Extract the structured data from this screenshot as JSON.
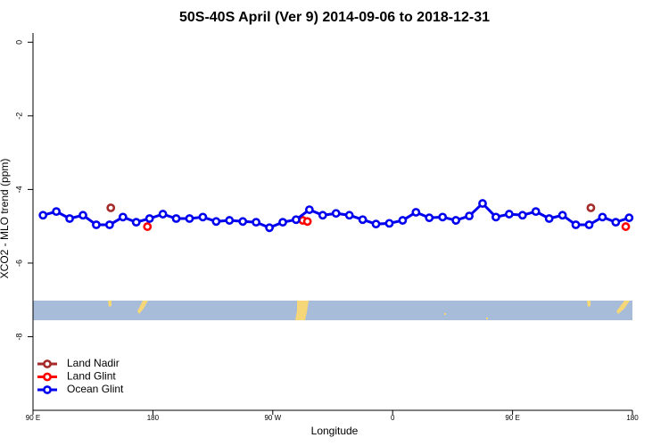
{
  "chart_data": {
    "type": "line",
    "title": "50S-40S April (Ver 9)   2014-09-06 to 2018-12-31",
    "x_label": "Longitude",
    "y_label": "XCO2 - MLO trend (ppm)",
    "xlim": [
      90,
      540
    ],
    "ylim": [
      -10,
      0.25
    ],
    "xticks": [
      {
        "value": 90,
        "label": "90 E"
      },
      {
        "value": 180,
        "label": "180"
      },
      {
        "value": 270,
        "label": "90 W"
      },
      {
        "value": 360,
        "label": "0"
      },
      {
        "value": 450,
        "label": "90 E"
      },
      {
        "value": 540,
        "label": "180"
      }
    ],
    "yticks": [
      0,
      -2,
      -4,
      -6,
      -8
    ],
    "legend": "bottom-left",
    "series": [
      {
        "name": "Land Nadir",
        "color": "#a52a2a",
        "x": [
          148.4,
          508.8
        ],
        "values": [
          -4.5,
          -4.5
        ]
      },
      {
        "name": "Land Glint",
        "color": "#ff0000",
        "x": [
          175.9,
          292.5,
          296.0,
          535.0
        ],
        "values": [
          -5.01,
          -4.84,
          -4.87,
          -5.01
        ]
      },
      {
        "name": "Ocean Glint",
        "color": "#0000ee",
        "x": [
          97.5,
          107.5,
          117.5,
          127.5,
          137.5,
          147.5,
          157.5,
          167.5,
          177.5,
          187.5,
          197.5,
          207.5,
          217.5,
          227.5,
          237.5,
          247.5,
          257.5,
          267.5,
          277.5,
          287.5,
          297.5,
          307.5,
          317.5,
          327.5,
          337.5,
          347.5,
          357.5,
          367.5,
          377.5,
          387.5,
          397.5,
          407.5,
          417.5,
          427.5,
          437.5,
          447.5,
          457.5,
          467.5,
          477.5,
          487.5,
          497.5,
          507.5,
          517.5,
          527.5,
          537.5
        ],
        "values": [
          -4.7,
          -4.6,
          -4.79,
          -4.7,
          -4.96,
          -4.96,
          -4.75,
          -4.89,
          -4.79,
          -4.67,
          -4.79,
          -4.79,
          -4.75,
          -4.87,
          -4.84,
          -4.87,
          -4.89,
          -5.04,
          -4.89,
          -4.82,
          -4.55,
          -4.7,
          -4.65,
          -4.7,
          -4.82,
          -4.94,
          -4.92,
          -4.84,
          -4.62,
          -4.77,
          -4.75,
          -4.84,
          -4.72,
          -4.38,
          -4.75,
          -4.67,
          -4.7,
          -4.6,
          -4.79,
          -4.7,
          -4.96,
          -4.96,
          -4.75,
          -4.89,
          -4.77
        ]
      }
    ]
  }
}
